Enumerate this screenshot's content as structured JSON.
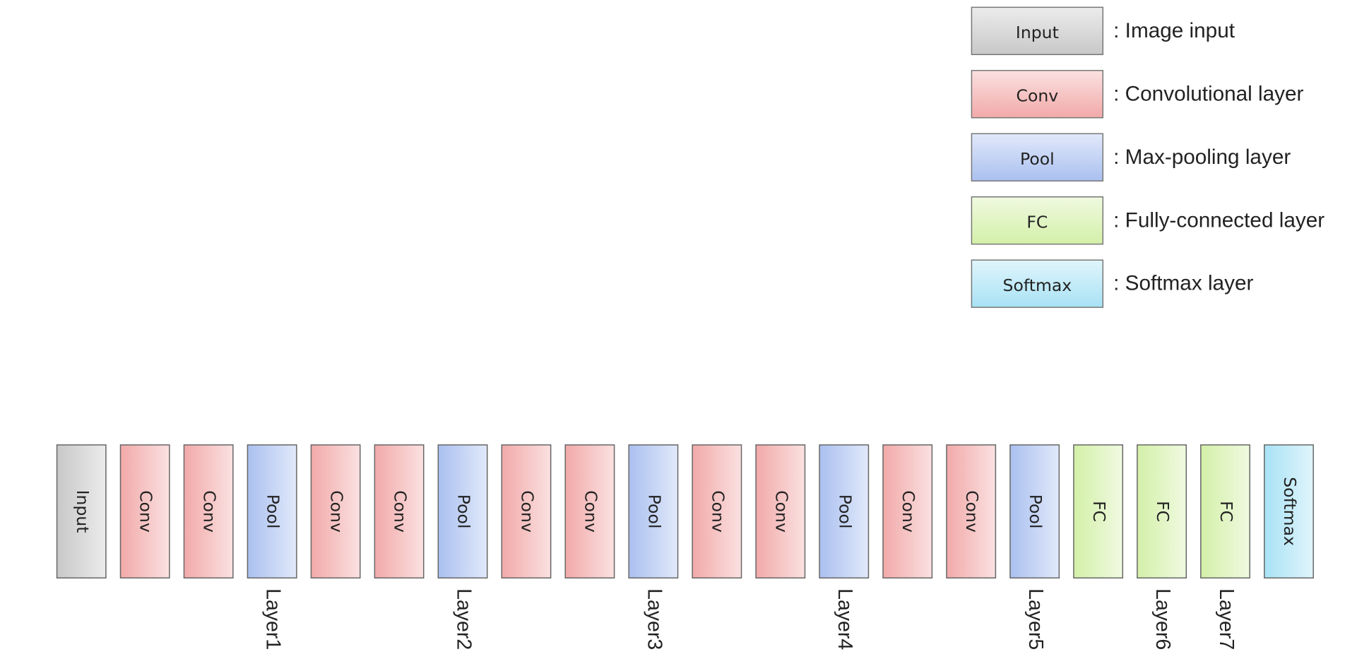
{
  "legend": [
    {
      "box": "Input",
      "text": ": Image input",
      "color": "#c8c8c8"
    },
    {
      "box": "Conv",
      "text": ": Convolutional layer",
      "color": "#f2a9a9"
    },
    {
      "box": "Pool",
      "text": ": Max-pooling layer",
      "color": "#aac0f0"
    },
    {
      "box": "FC",
      "text": ": Fully-connected layer",
      "color": "#d3f0a8"
    },
    {
      "box": "Softmax",
      "text": ": Softmax layer",
      "color": "#a8e2f5"
    }
  ],
  "blocks": [
    {
      "label": "Input"
    },
    {
      "label": "Conv"
    },
    {
      "label": "Conv"
    },
    {
      "label": "Pool",
      "layer": "Layer1"
    },
    {
      "label": "Conv"
    },
    {
      "label": "Conv"
    },
    {
      "label": "Pool",
      "layer": "Layer2"
    },
    {
      "label": "Conv"
    },
    {
      "label": "Conv"
    },
    {
      "label": "Pool",
      "layer": "Layer3"
    },
    {
      "label": "Conv"
    },
    {
      "label": "Conv"
    },
    {
      "label": "Pool",
      "layer": "Layer4"
    },
    {
      "label": "Conv"
    },
    {
      "label": "Conv"
    },
    {
      "label": "Pool",
      "layer": "Layer5"
    },
    {
      "label": "FC"
    },
    {
      "label": "FC",
      "layer": "Layer6"
    },
    {
      "label": "FC",
      "layer": "Layer7"
    },
    {
      "label": "Softmax"
    }
  ]
}
